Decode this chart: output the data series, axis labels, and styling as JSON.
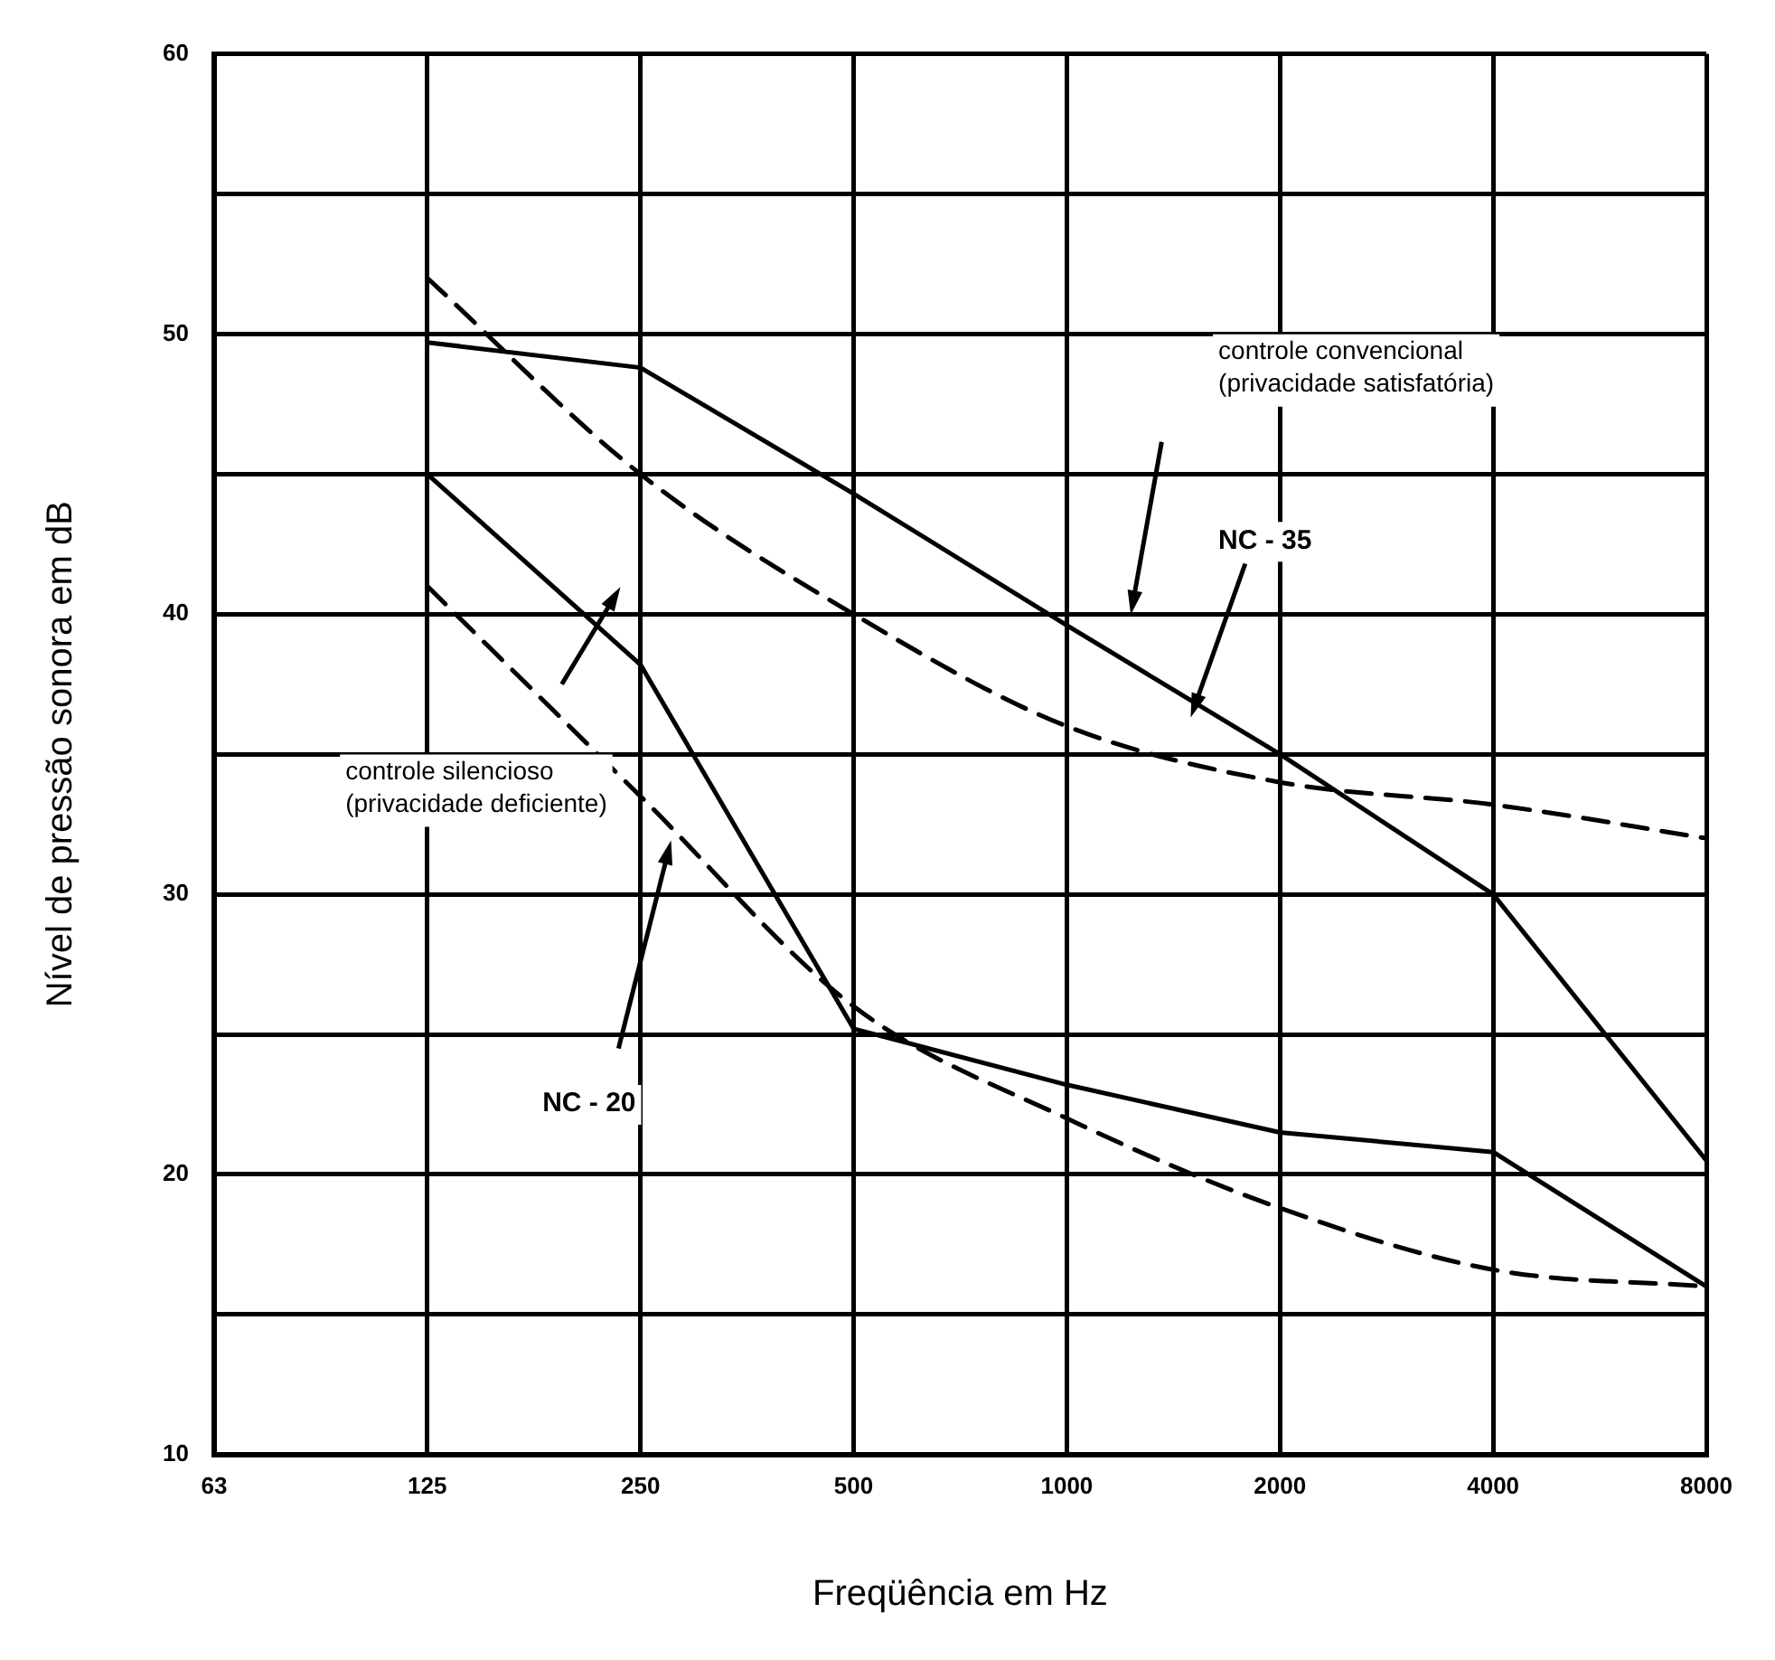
{
  "chart_data": {
    "type": "line",
    "xlabel": "Freqüência em Hz",
    "ylabel": "Nível de pressão sonora em dB",
    "categories": [
      "63",
      "125",
      "250",
      "500",
      "1000",
      "2000",
      "4000",
      "8000"
    ],
    "series": [
      {
        "color": "#000000",
        "line_style": "dashed",
        "values": [
          null,
          52,
          45,
          40,
          36,
          34,
          33.2,
          32
        ]
      },
      {
        "color": "#000000",
        "line_style": "solid",
        "values": [
          null,
          49.7,
          48.8,
          44.3,
          39.6,
          35,
          30,
          20.5
        ]
      },
      {
        "color": "#000000",
        "line_style": "solid",
        "values": [
          null,
          45,
          38.2,
          25.2,
          23.2,
          21.5,
          20.8,
          16
        ]
      },
      {
        "color": "#000000",
        "line_style": "dashed",
        "values": [
          null,
          41,
          33.5,
          26,
          22,
          18.8,
          16.6,
          16
        ]
      }
    ],
    "ylim": [
      10,
      60
    ],
    "yticks": [
      10,
      {
        "value": 15,
        "label": null
      },
      20,
      {
        "value": 25,
        "label": null
      },
      30,
      {
        "value": 35,
        "label": null
      },
      40,
      {
        "value": 45,
        "label": null
      },
      50,
      {
        "value": 55,
        "label": null
      },
      60
    ],
    "grid": true,
    "legend": false,
    "marker": "none",
    "annotations": [
      "controle convencional\n(privacidade satisfatória)",
      "NC - 35",
      "controle silencioso\n(privacidade deficiente)",
      "NC - 20"
    ]
  }
}
